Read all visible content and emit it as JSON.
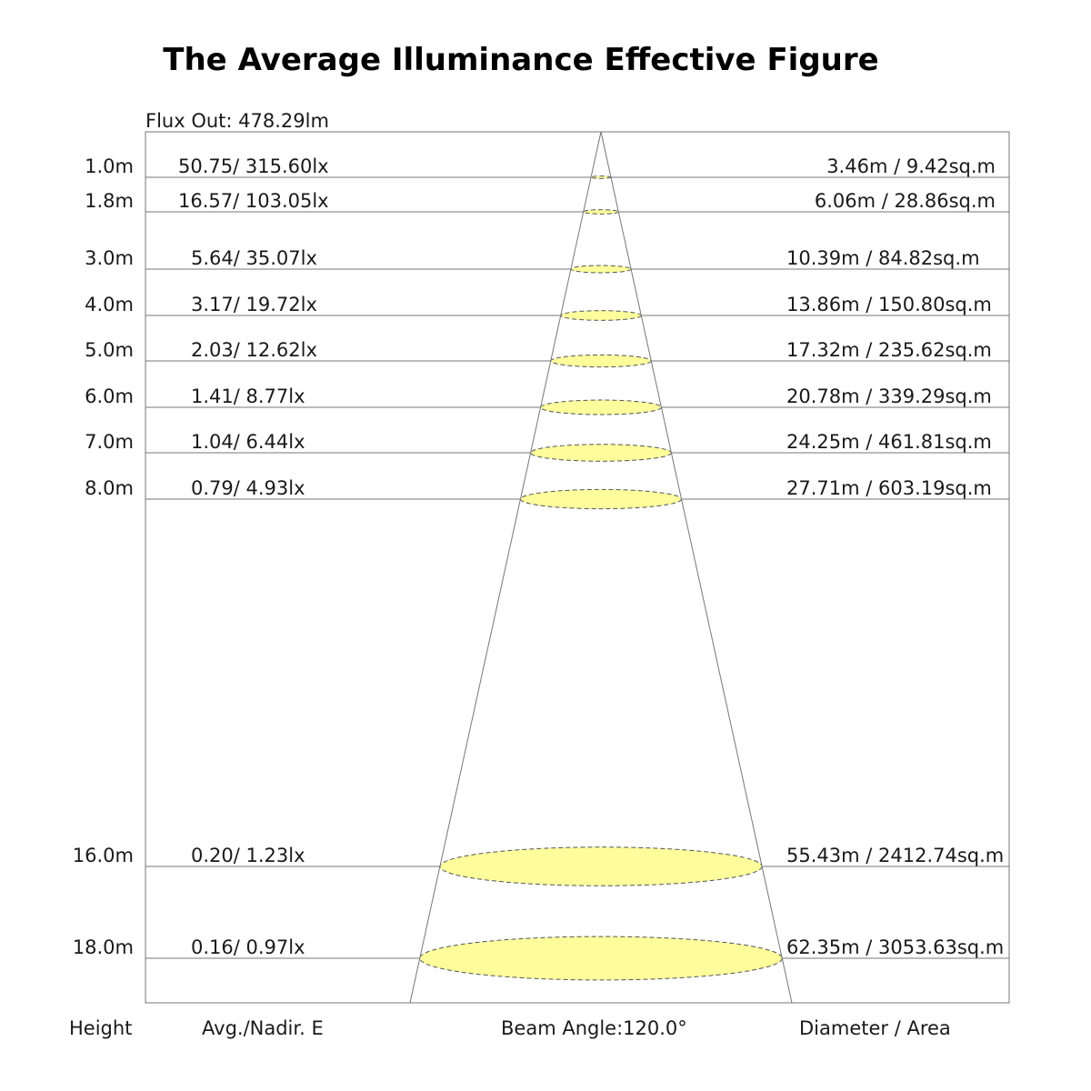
{
  "title": "The Average Illuminance Effective Figure",
  "flux_out": "Flux Out: 478.29lm",
  "footer": {
    "height": "Height",
    "avg_nadir": "Avg./Nadir. E",
    "beam_angle": "Beam Angle:120.0°",
    "diameter_area": "Diameter / Area"
  },
  "colors": {
    "spot_fill": "#fdfd9c",
    "line": "#777777"
  },
  "rows": [
    {
      "height": "1.0m",
      "illuminance": "50.75/ 315.60lx",
      "diameter_area": "3.46m / 9.42sq.m"
    },
    {
      "height": "1.8m",
      "illuminance": "16.57/ 103.05lx",
      "diameter_area": "6.06m / 28.86sq.m"
    },
    {
      "height": "3.0m",
      "illuminance": "5.64/ 35.07lx",
      "diameter_area": "10.39m / 84.82sq.m"
    },
    {
      "height": "4.0m",
      "illuminance": "3.17/ 19.72lx",
      "diameter_area": "13.86m / 150.80sq.m"
    },
    {
      "height": "5.0m",
      "illuminance": "2.03/ 12.62lx",
      "diameter_area": "17.32m / 235.62sq.m"
    },
    {
      "height": "6.0m",
      "illuminance": "1.41/ 8.77lx",
      "diameter_area": "20.78m / 339.29sq.m"
    },
    {
      "height": "7.0m",
      "illuminance": "1.04/ 6.44lx",
      "diameter_area": "24.25m / 461.81sq.m"
    },
    {
      "height": "8.0m",
      "illuminance": "0.79/ 4.93lx",
      "diameter_area": "27.71m / 603.19sq.m"
    },
    {
      "height": "16.0m",
      "illuminance": "0.20/ 1.23lx",
      "diameter_area": "55.43m / 2412.74sq.m"
    },
    {
      "height": "18.0m",
      "illuminance": "0.16/ 0.97lx",
      "diameter_area": "62.35m / 3053.63sq.m"
    }
  ]
}
